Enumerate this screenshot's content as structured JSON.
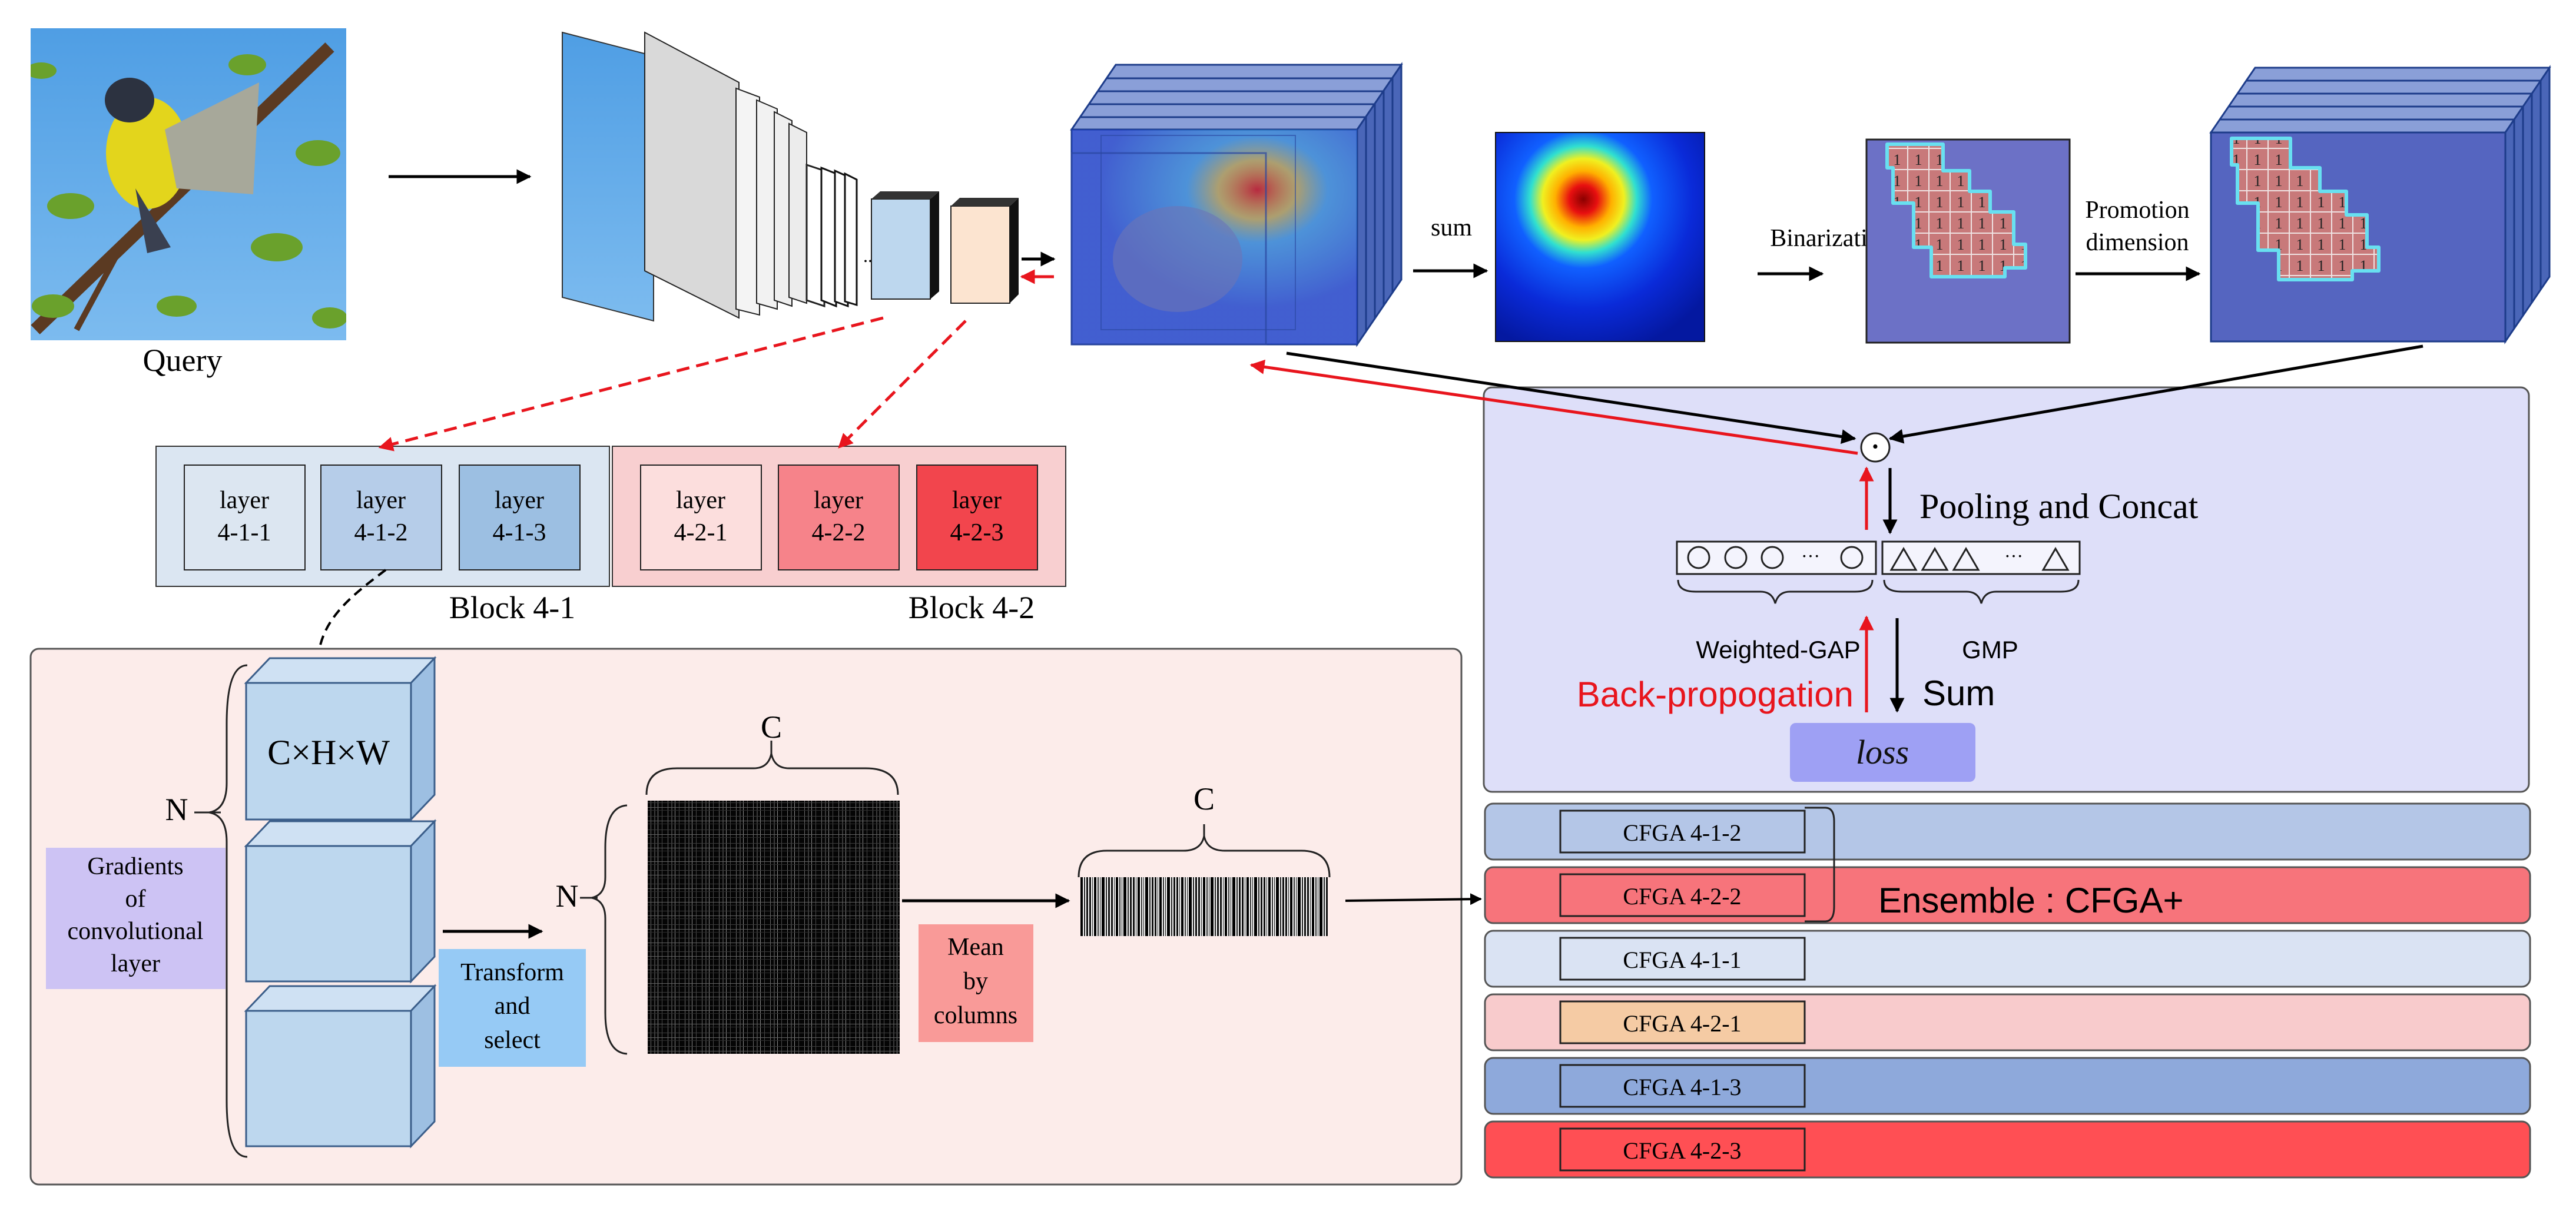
{
  "query_label": "Query",
  "blocks": {
    "block1": {
      "label": "Block 4-1",
      "layers": [
        {
          "l1": "layer",
          "l2": "4-1-1"
        },
        {
          "l1": "layer",
          "l2": "4-1-2"
        },
        {
          "l1": "layer",
          "l2": "4-1-3"
        }
      ]
    },
    "block2": {
      "label": "Block 4-2",
      "layers": [
        {
          "l1": "layer",
          "l2": "4-2-1"
        },
        {
          "l1": "layer",
          "l2": "4-2-2"
        },
        {
          "l1": "layer",
          "l2": "4-2-3"
        }
      ]
    }
  },
  "ellipsis": "...",
  "sum_label": "sum",
  "binarization_label": "Binarization",
  "promotion_label": {
    "l1": "Promotion",
    "l2": "dimension"
  },
  "binary_cell": "1",
  "lower": {
    "n_label": "N",
    "gradients_label": [
      "Gradients",
      "of",
      "convolutional",
      "layer"
    ],
    "chw_label": "C×H×W",
    "transform_label": [
      "Transform",
      "and",
      "select"
    ],
    "matrix_n": "N",
    "matrix_c": "C",
    "mean_label": [
      "Mean",
      "by",
      "columns"
    ],
    "vector_c": "C"
  },
  "loss_panel": {
    "odot": "·",
    "pooling_label": "Pooling and Concat",
    "weighted_gap_label": "Weighted-GAP",
    "gmp_label": "GMP",
    "backprop_label": "Back-propogation",
    "sum_label": "Sum",
    "loss_label": "loss",
    "gap_ellipsis": "···",
    "gmp_ellipsis": "···"
  },
  "ensemble_label": "Ensemble : CFGA+",
  "cfga_rows": [
    {
      "label": "CFGA 4-1-2"
    },
    {
      "label": "CFGA 4-2-2"
    },
    {
      "label": "CFGA 4-1-1"
    },
    {
      "label": "CFGA 4-2-1"
    },
    {
      "label": "CFGA 4-1-3"
    },
    {
      "label": "CFGA 4-2-3"
    }
  ],
  "colors": {
    "block1_bg": "#dbe6f2",
    "block2_bg": "#f8cfd0",
    "lower_panel_bg": "#fcecea",
    "loss_panel_bg": "#dedff9",
    "loss_box": "#9ea0f4",
    "backprop_red": "#e8151d",
    "gradients_box": "#cdc3f4",
    "transform_box": "#96caf5",
    "mean_box": "#f99a98",
    "cube_face": "#bdd7ee",
    "layer_411": "#dce6f1",
    "layer_412": "#b6cde9",
    "layer_413": "#9cbfe2",
    "layer_421": "#fcdedd",
    "layer_422": "#f6838a",
    "layer_423": "#f2454d",
    "row_412": "#b4c6e7",
    "row_422": "#f7747b",
    "row_411": "#dae3f3",
    "row_421": "#f8cbcc",
    "row_413": "#8ea9db",
    "row_423": "#ff4f54",
    "inner_421": "#f5cba4"
  }
}
